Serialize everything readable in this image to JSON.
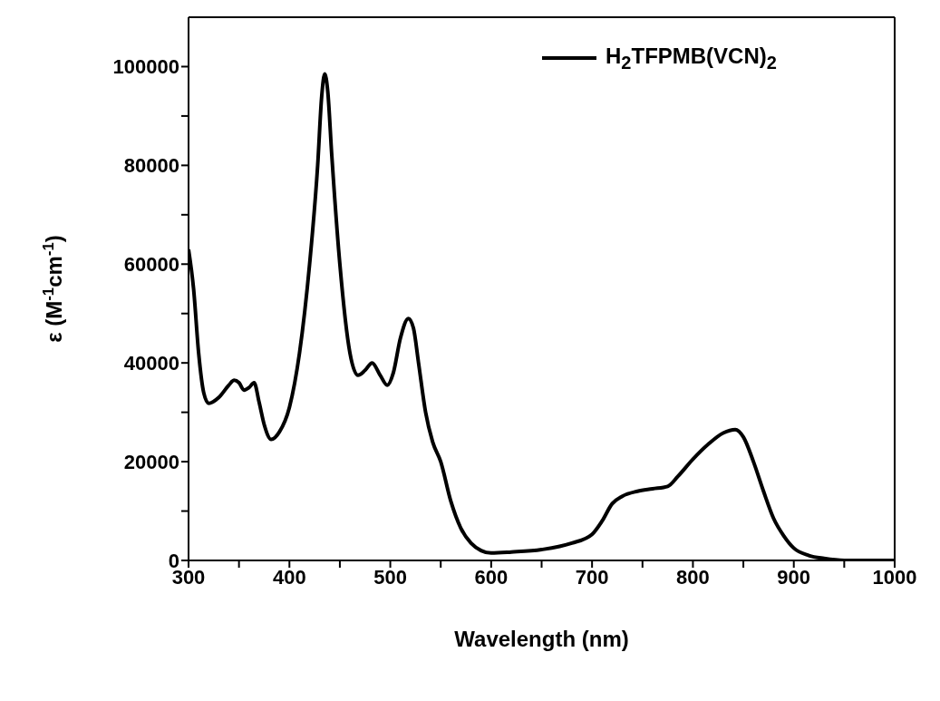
{
  "chart_data": {
    "type": "line",
    "xlabel": "Wavelength (nm)",
    "ylabel": "ε (M$^{-1}$cm$^{-1}$)",
    "xlim": [
      300,
      1000
    ],
    "xticks": [
      300,
      {
        "value": 350,
        "label": null
      },
      400,
      {
        "value": 450,
        "label": null
      },
      500,
      {
        "value": 550,
        "label": null
      },
      600,
      {
        "value": 650,
        "label": null
      },
      700,
      {
        "value": 750,
        "label": null
      },
      800,
      {
        "value": 850,
        "label": null
      },
      900,
      {
        "value": 950,
        "label": null
      },
      1000
    ],
    "ylim": [
      0,
      110000
    ],
    "yticks": [
      0,
      {
        "value": 10000,
        "label": null
      },
      20000,
      {
        "value": 30000,
        "label": null
      },
      40000,
      {
        "value": 50000,
        "label": null
      },
      60000,
      {
        "value": 70000,
        "label": null
      },
      80000,
      {
        "value": 90000,
        "label": null
      },
      100000
    ],
    "legend": "top right",
    "grid": false,
    "marker": "none",
    "line_style": "solid",
    "x": [
      300,
      305,
      310,
      315,
      320,
      330,
      340,
      345,
      350,
      355,
      360,
      365,
      370,
      375,
      382,
      390,
      400,
      410,
      420,
      428,
      432,
      435,
      438,
      442,
      450,
      460,
      468,
      475,
      482,
      490,
      497,
      503,
      510,
      518,
      523,
      528,
      535,
      542,
      550,
      560,
      570,
      580,
      590,
      600,
      620,
      650,
      680,
      700,
      710,
      720,
      730,
      745,
      760,
      775,
      785,
      800,
      815,
      830,
      842,
      850,
      860,
      870,
      880,
      890,
      900,
      915,
      930,
      950,
      1000
    ],
    "series": [
      {
        "name": "H$_{2}$TFPMB(VCN)$_{2}$",
        "color": "#000000",
        "values": [
          63000,
          55000,
          42000,
          34000,
          31800,
          33000,
          35500,
          36500,
          36000,
          34500,
          35000,
          36000,
          32000,
          27500,
          24500,
          26000,
          31000,
          42000,
          60000,
          80000,
          94000,
          98500,
          95000,
          82000,
          60000,
          42000,
          37500,
          38500,
          40000,
          37500,
          35500,
          38000,
          45000,
          49000,
          47000,
          40000,
          30000,
          24000,
          20000,
          12000,
          6500,
          3500,
          2000,
          1500,
          1700,
          2200,
          3500,
          5300,
          8000,
          11500,
          13000,
          14000,
          14500,
          15000,
          17000,
          20500,
          23500,
          25800,
          26500,
          25000,
          20000,
          14000,
          8500,
          5000,
          2500,
          1000,
          400,
          0,
          0
        ]
      }
    ]
  }
}
